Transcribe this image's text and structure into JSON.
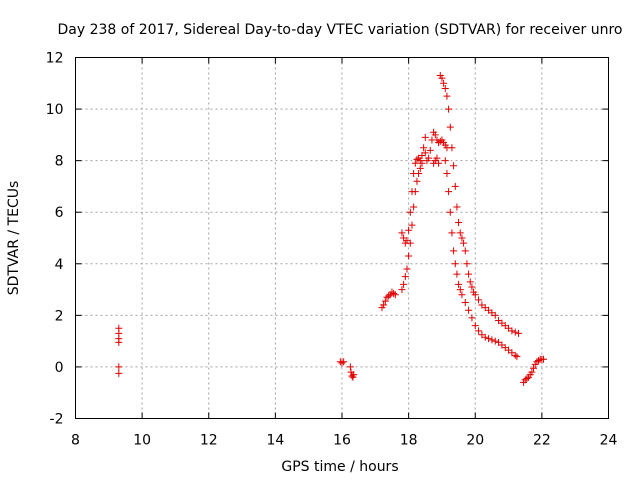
{
  "chart_data": {
    "type": "scatter",
    "title": "Day 238 of 2017, Sidereal Day-to-day VTEC variation (SDTVAR) for receiver unro",
    "xlabel": "GPS time / hours",
    "ylabel": "SDTVAR / TECUs",
    "xlim": [
      8,
      24
    ],
    "ylim": [
      -2,
      12
    ],
    "xticks": [
      8,
      10,
      12,
      14,
      16,
      18,
      20,
      22,
      24
    ],
    "xtick_labels": [
      "8",
      "10",
      "12",
      "14",
      "16",
      "18",
      "20",
      "22",
      "24"
    ],
    "yticks": [
      -2,
      0,
      2,
      4,
      6,
      8,
      10,
      12
    ],
    "ytick_labels": [
      "-2",
      "0",
      "2",
      "4",
      "6",
      "8",
      "10",
      "12"
    ],
    "grid": true,
    "marker": "plus",
    "series_color": "#e00000",
    "series": [
      {
        "name": "SDTVAR",
        "points": [
          [
            9.3,
            1.5
          ],
          [
            9.3,
            1.3
          ],
          [
            9.3,
            1.1
          ],
          [
            9.3,
            0.95
          ],
          [
            9.3,
            0.0
          ],
          [
            9.3,
            -0.25
          ],
          [
            15.95,
            0.2
          ],
          [
            16.0,
            0.15
          ],
          [
            16.05,
            0.2
          ],
          [
            16.25,
            0.0
          ],
          [
            16.27,
            -0.2
          ],
          [
            16.3,
            -0.35
          ],
          [
            16.33,
            -0.4
          ],
          [
            16.35,
            -0.3
          ],
          [
            17.2,
            2.3
          ],
          [
            17.25,
            2.4
          ],
          [
            17.3,
            2.55
          ],
          [
            17.35,
            2.7
          ],
          [
            17.4,
            2.75
          ],
          [
            17.45,
            2.8
          ],
          [
            17.5,
            2.9
          ],
          [
            17.55,
            2.85
          ],
          [
            17.6,
            2.8
          ],
          [
            17.8,
            3.0
          ],
          [
            17.85,
            3.2
          ],
          [
            17.9,
            3.5
          ],
          [
            17.95,
            3.8
          ],
          [
            18.0,
            4.3
          ],
          [
            18.05,
            4.8
          ],
          [
            18.1,
            5.5
          ],
          [
            18.15,
            6.2
          ],
          [
            18.2,
            6.8
          ],
          [
            18.25,
            7.2
          ],
          [
            18.3,
            7.5
          ],
          [
            18.35,
            7.7
          ],
          [
            18.4,
            7.9
          ],
          [
            17.8,
            5.2
          ],
          [
            17.85,
            5.0
          ],
          [
            17.9,
            4.8
          ],
          [
            17.95,
            4.9
          ],
          [
            18.0,
            5.3
          ],
          [
            18.05,
            6.0
          ],
          [
            18.1,
            6.8
          ],
          [
            18.15,
            7.5
          ],
          [
            18.2,
            7.9
          ],
          [
            18.25,
            8.05
          ],
          [
            18.3,
            8.1
          ],
          [
            18.35,
            8.0
          ],
          [
            18.4,
            8.2
          ],
          [
            18.45,
            8.5
          ],
          [
            18.5,
            8.9
          ],
          [
            18.5,
            8.3
          ],
          [
            18.55,
            8.0
          ],
          [
            18.6,
            8.1
          ],
          [
            18.65,
            8.4
          ],
          [
            18.7,
            8.8
          ],
          [
            18.75,
            9.1
          ],
          [
            18.8,
            9.0
          ],
          [
            18.85,
            8.8
          ],
          [
            18.9,
            8.7
          ],
          [
            18.95,
            8.75
          ],
          [
            19.0,
            8.8
          ],
          [
            19.05,
            8.7
          ],
          [
            19.1,
            8.6
          ],
          [
            19.15,
            8.5
          ],
          [
            18.75,
            7.9
          ],
          [
            18.8,
            8.0
          ],
          [
            18.85,
            8.1
          ],
          [
            18.9,
            7.9
          ],
          [
            18.95,
            11.3
          ],
          [
            19.0,
            11.2
          ],
          [
            19.05,
            11.0
          ],
          [
            19.1,
            10.8
          ],
          [
            19.15,
            10.5
          ],
          [
            19.2,
            10.0
          ],
          [
            19.25,
            9.3
          ],
          [
            19.3,
            8.5
          ],
          [
            19.35,
            7.8
          ],
          [
            19.4,
            7.0
          ],
          [
            19.45,
            6.2
          ],
          [
            19.5,
            5.6
          ],
          [
            19.55,
            5.2
          ],
          [
            19.6,
            5.0
          ],
          [
            19.65,
            4.8
          ],
          [
            19.7,
            4.5
          ],
          [
            19.75,
            4.0
          ],
          [
            19.8,
            3.6
          ],
          [
            19.85,
            3.3
          ],
          [
            19.9,
            3.1
          ],
          [
            19.95,
            2.9
          ],
          [
            20.0,
            2.8
          ],
          [
            20.1,
            2.6
          ],
          [
            20.2,
            2.4
          ],
          [
            20.3,
            2.3
          ],
          [
            20.4,
            2.2
          ],
          [
            20.5,
            2.1
          ],
          [
            20.6,
            2.0
          ],
          [
            20.7,
            1.8
          ],
          [
            20.8,
            1.7
          ],
          [
            20.9,
            1.6
          ],
          [
            21.0,
            1.5
          ],
          [
            21.1,
            1.4
          ],
          [
            21.2,
            1.35
          ],
          [
            21.3,
            1.3
          ],
          [
            19.1,
            8.0
          ],
          [
            19.15,
            7.5
          ],
          [
            19.2,
            6.8
          ],
          [
            19.25,
            6.0
          ],
          [
            19.3,
            5.2
          ],
          [
            19.35,
            4.5
          ],
          [
            19.4,
            4.0
          ],
          [
            19.45,
            3.6
          ],
          [
            19.5,
            3.2
          ],
          [
            19.55,
            3.0
          ],
          [
            19.6,
            2.8
          ],
          [
            19.7,
            2.5
          ],
          [
            19.8,
            2.2
          ],
          [
            19.9,
            1.9
          ],
          [
            20.0,
            1.6
          ],
          [
            20.1,
            1.4
          ],
          [
            20.2,
            1.25
          ],
          [
            20.3,
            1.15
          ],
          [
            20.4,
            1.1
          ],
          [
            20.5,
            1.05
          ],
          [
            20.6,
            1.0
          ],
          [
            20.7,
            0.95
          ],
          [
            20.8,
            0.85
          ],
          [
            20.9,
            0.75
          ],
          [
            21.0,
            0.65
          ],
          [
            21.1,
            0.55
          ],
          [
            21.2,
            0.45
          ],
          [
            21.25,
            0.4
          ],
          [
            21.45,
            -0.6
          ],
          [
            21.5,
            -0.5
          ],
          [
            21.55,
            -0.45
          ],
          [
            21.6,
            -0.4
          ],
          [
            21.65,
            -0.3
          ],
          [
            21.7,
            -0.2
          ],
          [
            21.75,
            -0.05
          ],
          [
            21.8,
            0.1
          ],
          [
            21.85,
            0.2
          ],
          [
            21.9,
            0.25
          ],
          [
            21.95,
            0.3
          ],
          [
            22.0,
            0.3
          ],
          [
            22.05,
            0.3
          ]
        ]
      }
    ]
  }
}
